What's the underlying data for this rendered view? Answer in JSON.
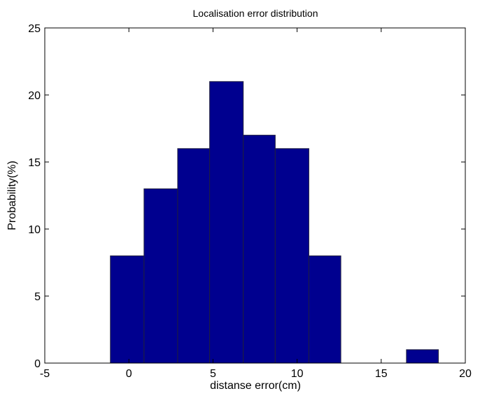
{
  "chart_data": {
    "type": "bar",
    "title": "Localisation error distribution",
    "xlabel": "distanse error(cm)",
    "ylabel": "Probability(%)",
    "xlim": [
      -5,
      20
    ],
    "ylim": [
      0,
      25
    ],
    "xticks": [
      -5,
      0,
      5,
      10,
      15,
      20
    ],
    "yticks": [
      0,
      5,
      10,
      15,
      20,
      25
    ],
    "grid": false,
    "legend": "none",
    "bar_color": "#00008f",
    "bar_edge_color": "#1f1f3f",
    "bins": [
      {
        "x0": -1.1,
        "x1": 0.9,
        "value": 8
      },
      {
        "x0": 0.9,
        "x1": 2.9,
        "value": 13
      },
      {
        "x0": 2.9,
        "x1": 4.8,
        "value": 16
      },
      {
        "x0": 4.8,
        "x1": 6.8,
        "value": 21
      },
      {
        "x0": 6.8,
        "x1": 8.7,
        "value": 17
      },
      {
        "x0": 8.7,
        "x1": 10.7,
        "value": 16
      },
      {
        "x0": 10.7,
        "x1": 12.6,
        "value": 8
      },
      {
        "x0": 12.6,
        "x1": 14.5,
        "value": 0
      },
      {
        "x0": 14.5,
        "x1": 16.5,
        "value": 0
      },
      {
        "x0": 16.5,
        "x1": 18.4,
        "value": 1
      }
    ]
  }
}
